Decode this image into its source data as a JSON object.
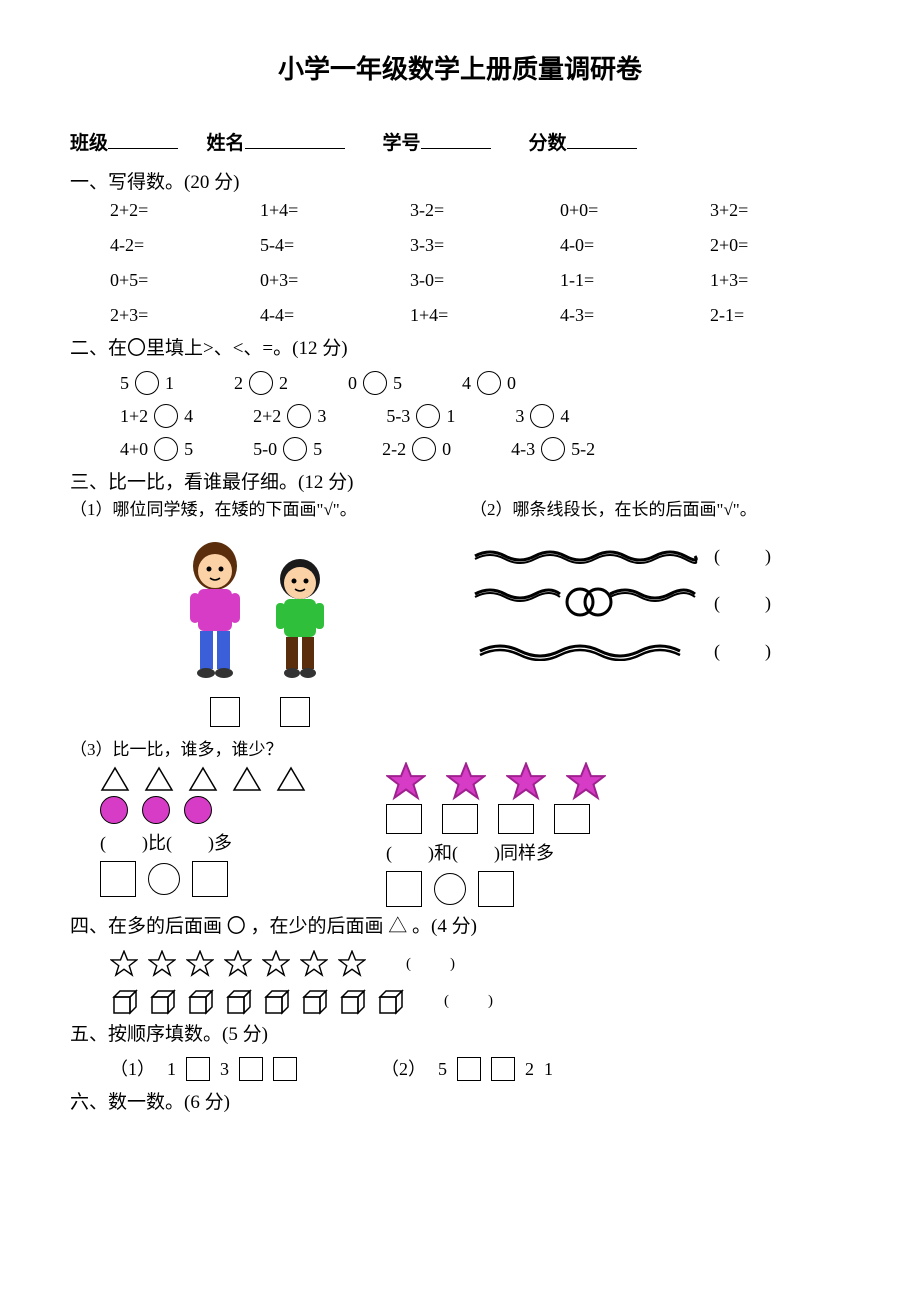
{
  "title": "小学一年级数学上册质量调研卷",
  "info": {
    "class_label": "班级",
    "name_label": "姓名",
    "id_label": "学号",
    "score_label": "分数"
  },
  "colors": {
    "magenta": "#d63cc6",
    "magenta_dark": "#a02090",
    "kid1_hair": "#5a2d0c",
    "kid1_shirt": "#d63cc6",
    "kid1_pants": "#3a5fd9",
    "kid1_face": "#fbd2a6",
    "kid2_hair": "#1a1a1a",
    "kid2_shirt": "#2fbf3a",
    "kid2_pants": "#5a2d0c",
    "kid2_face": "#fbd2a6",
    "rope": "#000000"
  },
  "q1": {
    "head": "一、写得数。(20 分)",
    "items": [
      "2+2=",
      "1+4=",
      "3-2=",
      "0+0=",
      "3+2=",
      "4-2=",
      "5-4=",
      "3-3=",
      "4-0=",
      "2+0=",
      "0+5=",
      "0+3=",
      "3-0=",
      "1-1=",
      "1+3=",
      "2+3=",
      "4-4=",
      "1+4=",
      "4-3=",
      "2-1="
    ]
  },
  "q2": {
    "head": "二、在〇里填上>、<、=。(12 分)",
    "rows": [
      [
        {
          "l": "5",
          "r": "1"
        },
        {
          "l": "2",
          "r": "2"
        },
        {
          "l": "0",
          "r": "5"
        },
        {
          "l": "4",
          "r": "0"
        }
      ],
      [
        {
          "l": "1+2",
          "r": "4"
        },
        {
          "l": "2+2",
          "r": "3"
        },
        {
          "l": "5-3",
          "r": "1"
        },
        {
          "l": "3",
          "r": "4"
        }
      ],
      [
        {
          "l": "4+0",
          "r": "5"
        },
        {
          "l": "5-0",
          "r": "5"
        },
        {
          "l": "2-2",
          "r": "0"
        },
        {
          "l": "4-3",
          "r": "5-2"
        }
      ]
    ]
  },
  "q3": {
    "head": "三、比一比，看谁最仔细。(12 分)",
    "p1": "（1）哪位同学矮，在矮的下面画\"√\"。",
    "p2": "（2）哪条线段长，在长的后面画\"√\"。",
    "p3": "（3）比一比，谁多，谁少？",
    "left_fill": "(　　)比(　　)多",
    "right_fill": "(　　)和(　　)同样多",
    "triangle_count": 5,
    "circle_count": 3,
    "star_count": 4,
    "box_under_star": 4,
    "rope_paren": "(　　)"
  },
  "q4": {
    "head": "四、在多的后面画 〇 ，在少的后面画 △ 。(4 分)",
    "stars": 7,
    "cubes": 8,
    "paren": "(　　)"
  },
  "q5": {
    "head": "五、按顺序填数。(5 分)",
    "seq1_label": "（1）",
    "seq1": [
      "1",
      "",
      "3",
      "",
      ""
    ],
    "seq2_label": "（2）",
    "seq2": [
      "5",
      "",
      "",
      "2",
      "1"
    ]
  },
  "q6": {
    "head": "六、数一数。(6 分)"
  }
}
